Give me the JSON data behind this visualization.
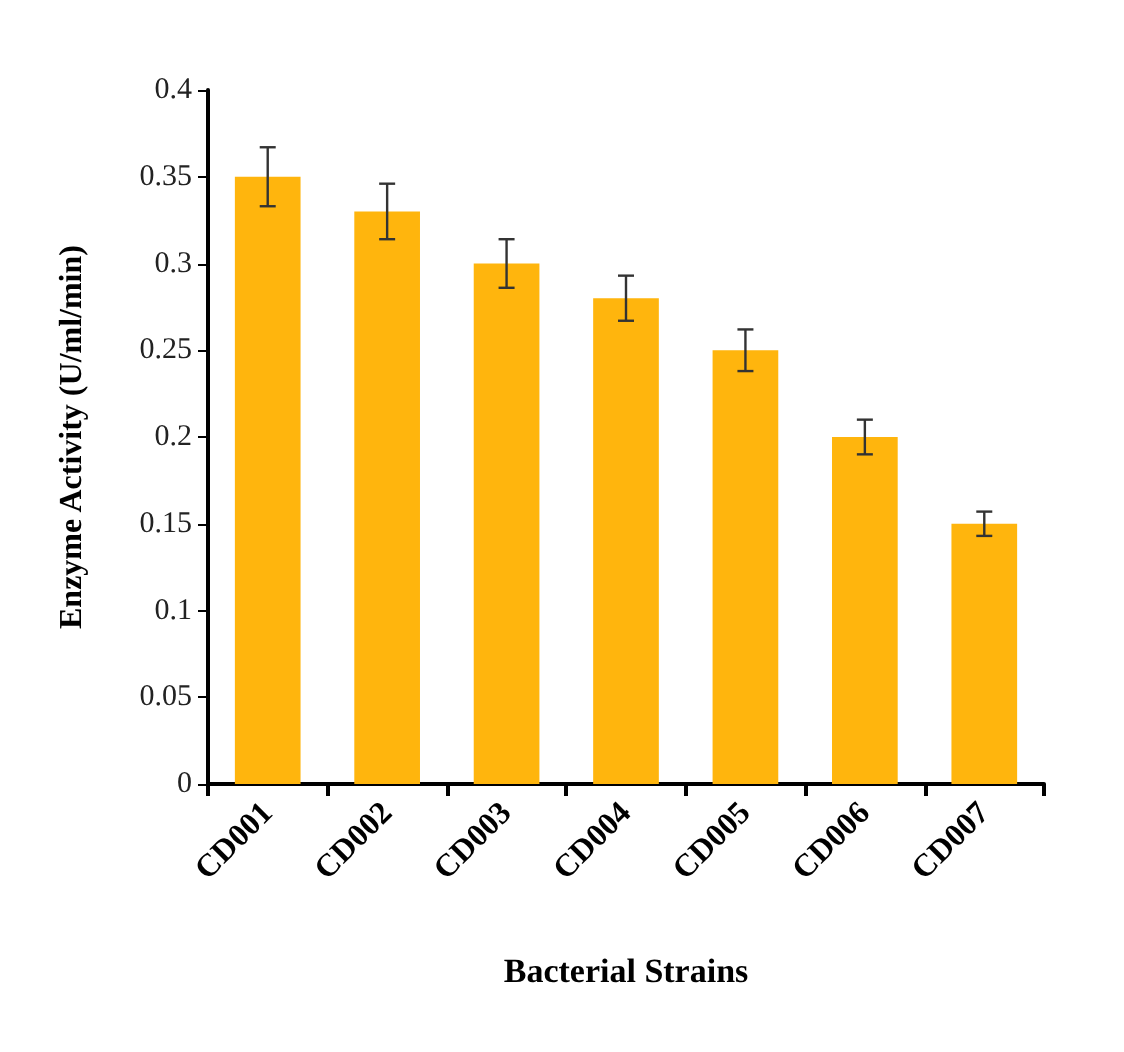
{
  "chart_data": {
    "type": "bar",
    "xlabel": "Bacterial Strains",
    "ylabel": "Enzyme Activity (U/ml/min)",
    "categories": [
      "CD001",
      "CD002",
      "CD003",
      "CD004",
      "CD005",
      "CD006",
      "CD007"
    ],
    "values": [
      0.35,
      0.33,
      0.3,
      0.28,
      0.25,
      0.2,
      0.15
    ],
    "errors": [
      0.017,
      0.016,
      0.014,
      0.013,
      0.012,
      0.01,
      0.007
    ],
    "color": "#ffb50d",
    "ylim": [
      0,
      0.4
    ],
    "yticks": [
      0,
      0.05,
      0.1,
      0.15,
      0.2,
      0.25,
      0.3,
      0.35,
      0.4
    ],
    "grid": false
  }
}
